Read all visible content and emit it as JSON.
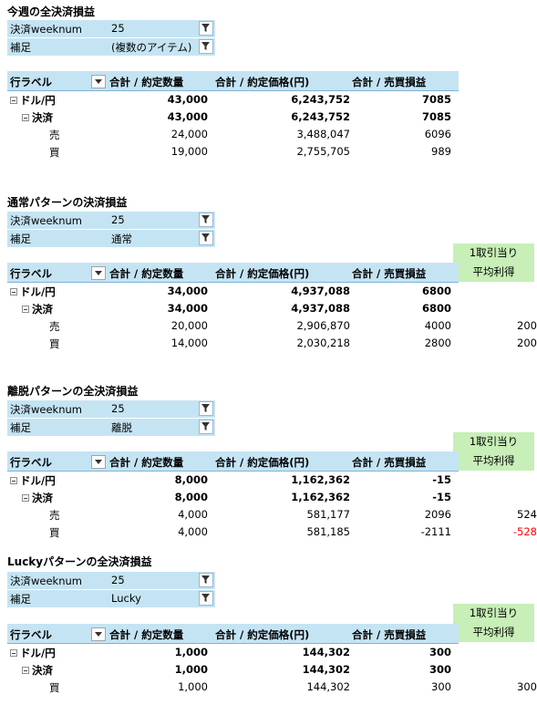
{
  "colors": {
    "header_bg": "#c5e4f3",
    "green_bg": "#c7efb7",
    "negative": "#ff0000"
  },
  "icons": {
    "filter": "filter-funnel-icon",
    "dropdown": "dropdown-arrow-icon",
    "collapse": "collapse-minus-icon"
  },
  "sections": [
    {
      "title": "今週の全決済損益",
      "filters": [
        {
          "label": "決済weeknum",
          "value": "25"
        },
        {
          "label": "補足",
          "value": "(複数のアイテム)"
        }
      ],
      "headers": {
        "row_label": "行ラベル",
        "qty": "合計 / 約定数量",
        "price": "合計 / 約定価格(円)",
        "pnl": "合計 / 売買損益"
      },
      "rows": [
        {
          "label": "ドル/円",
          "qty": "43,000",
          "price": "6,243,752",
          "pnl": "7085"
        },
        {
          "label": "決済",
          "qty": "43,000",
          "price": "6,243,752",
          "pnl": "7085"
        },
        {
          "label": "売",
          "qty": "24,000",
          "price": "3,488,047",
          "pnl": "6096"
        },
        {
          "label": "買",
          "qty": "19,000",
          "price": "2,755,705",
          "pnl": "989"
        }
      ]
    },
    {
      "title": "通常パターンの決済損益",
      "filters": [
        {
          "label": "決済weeknum",
          "value": "25"
        },
        {
          "label": "補足",
          "value": "通常"
        }
      ],
      "extra_header": [
        "1取引当り",
        "平均利得"
      ],
      "headers": {
        "row_label": "行ラベル",
        "qty": "合計 / 約定数量",
        "price": "合計 / 約定価格(円)",
        "pnl": "合計 / 売買損益"
      },
      "rows": [
        {
          "label": "ドル/円",
          "qty": "34,000",
          "price": "4,937,088",
          "pnl": "6800"
        },
        {
          "label": "決済",
          "qty": "34,000",
          "price": "4,937,088",
          "pnl": "6800"
        },
        {
          "label": "売",
          "qty": "20,000",
          "price": "2,906,870",
          "pnl": "4000",
          "avg": "200"
        },
        {
          "label": "買",
          "qty": "14,000",
          "price": "2,030,218",
          "pnl": "2800",
          "avg": "200"
        }
      ]
    },
    {
      "title": "離脱パターンの全決済損益",
      "filters": [
        {
          "label": "決済weeknum",
          "value": "25"
        },
        {
          "label": "補足",
          "value": "離脱"
        }
      ],
      "extra_header": [
        "1取引当り",
        "平均利得"
      ],
      "headers": {
        "row_label": "行ラベル",
        "qty": "合計 / 約定数量",
        "price": "合計 / 約定価格(円)",
        "pnl": "合計 / 売買損益"
      },
      "rows": [
        {
          "label": "ドル/円",
          "qty": "8,000",
          "price": "1,162,362",
          "pnl": "-15"
        },
        {
          "label": "決済",
          "qty": "8,000",
          "price": "1,162,362",
          "pnl": "-15"
        },
        {
          "label": "売",
          "qty": "4,000",
          "price": "581,177",
          "pnl": "2096",
          "avg": "524"
        },
        {
          "label": "買",
          "qty": "4,000",
          "price": "581,185",
          "pnl": "-2111",
          "avg": "-528"
        }
      ]
    },
    {
      "title": "Luckyパターンの全決済損益",
      "filters": [
        {
          "label": "決済weeknum",
          "value": "25"
        },
        {
          "label": "補足",
          "value": "Lucky"
        }
      ],
      "extra_header": [
        "1取引当り",
        "平均利得"
      ],
      "headers": {
        "row_label": "行ラベル",
        "qty": "合計 / 約定数量",
        "price": "合計 / 約定価格(円)",
        "pnl": "合計 / 売買損益"
      },
      "rows": [
        {
          "label": "ドル/円",
          "qty": "1,000",
          "price": "144,302",
          "pnl": "300"
        },
        {
          "label": "決済",
          "qty": "1,000",
          "price": "144,302",
          "pnl": "300"
        },
        {
          "label": "買",
          "qty": "1,000",
          "price": "144,302",
          "pnl": "300",
          "avg": "300"
        }
      ]
    }
  ]
}
